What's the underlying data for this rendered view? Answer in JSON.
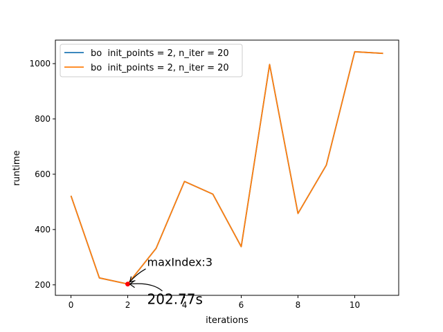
{
  "chart_data": {
    "type": "line",
    "xlabel": "iterations",
    "ylabel": "runtime",
    "xlim": [
      -0.55,
      11.55
    ],
    "ylim": [
      162,
      1085
    ],
    "x_ticks": [
      0,
      2,
      4,
      6,
      8,
      10
    ],
    "y_ticks": [
      200,
      400,
      600,
      800,
      1000
    ],
    "x": [
      0,
      1,
      2,
      3,
      4,
      5,
      6,
      7,
      8,
      9,
      10,
      11
    ],
    "series": [
      {
        "name": "bo  init_points = 2, n_iter = 20",
        "color": "#1f77b4",
        "values": [
          522,
          225,
          203,
          332,
          574,
          528,
          338,
          997,
          458,
          633,
          1043,
          1037
        ]
      },
      {
        "name": "bo  init_points = 2, n_iter = 20",
        "color": "#ff7f0e",
        "values": [
          522,
          225,
          203,
          332,
          574,
          528,
          338,
          997,
          458,
          633,
          1043,
          1037
        ]
      }
    ],
    "highlight_point": {
      "x": 2,
      "y": 202.77,
      "color": "#ff0000"
    },
    "annotations": [
      {
        "text": "maxIndex:3",
        "x": 2,
        "y": 202.77
      },
      {
        "text": "202.77s",
        "x": 2,
        "y": 202.77
      }
    ],
    "legend_position": "upper-left",
    "grid": false
  }
}
